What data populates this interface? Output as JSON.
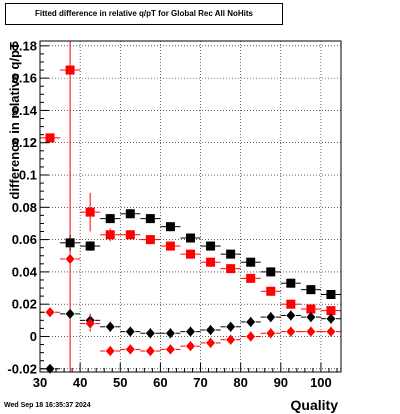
{
  "timestamp": "Wed Sep 18 16:35:37 2024",
  "colors": {
    "black": "#000000",
    "red": "#ff0000",
    "grid": "#000000"
  },
  "chart_data": {
    "type": "scatter",
    "title": "Fitted difference in relative q/pT for Global Rec All NoHits",
    "xlabel": "Quality",
    "ylabel": "difference in relative q/pT",
    "xlim": [
      30,
      105
    ],
    "ylim": [
      -0.022,
      0.183
    ],
    "grid": true,
    "x_ticks": [
      30,
      40,
      50,
      60,
      70,
      80,
      90,
      100
    ],
    "y_ticks": [
      -0.02,
      0,
      0.02,
      0.04,
      0.06,
      0.08,
      0.1,
      0.12,
      0.14,
      0.16,
      0.18
    ],
    "x_tick_labels": [
      "30",
      "40",
      "50",
      "60",
      "70",
      "80",
      "90",
      "100"
    ],
    "y_tick_labels": [
      "-0.02",
      "0",
      "0.02",
      "0.04",
      "0.06",
      "0.08",
      "0.1",
      "0.12",
      "0.14",
      "0.16",
      "0.18"
    ],
    "series": [
      {
        "marker": "square",
        "color": "#000000",
        "x": [
          37.5,
          42.5,
          47.5,
          52.5,
          57.5,
          62.5,
          67.5,
          72.5,
          77.5,
          82.5,
          87.5,
          92.5,
          97.5,
          102.5
        ],
        "y": [
          0.058,
          0.056,
          0.073,
          0.076,
          0.073,
          0.068,
          0.061,
          0.056,
          0.051,
          0.046,
          0.04,
          0.033,
          0.029,
          0.026
        ],
        "yerr": [
          0.005,
          0.003,
          0.002,
          0.002,
          0.002,
          0.002,
          0.002,
          0.002,
          0.002,
          0.002,
          0.002,
          0.002,
          0.002,
          0.002
        ]
      },
      {
        "marker": "square",
        "color": "#ff0000",
        "x": [
          32.5,
          37.5,
          42.5,
          47.5,
          52.5,
          57.5,
          62.5,
          67.5,
          72.5,
          77.5,
          82.5,
          87.5,
          92.5,
          97.5,
          102.5
        ],
        "y": [
          0.123,
          0.165,
          0.077,
          0.063,
          0.063,
          0.06,
          0.056,
          0.051,
          0.046,
          0.042,
          0.036,
          0.028,
          0.02,
          0.017,
          0.016
        ],
        "yerr": [
          0.0,
          0.0,
          0.012,
          0.004,
          0.002,
          0.002,
          0.002,
          0.002,
          0.002,
          0.002,
          0.002,
          0.002,
          0.002,
          0.002,
          0.002
        ]
      },
      {
        "marker": "diamond",
        "color": "#000000",
        "x": [
          32.5,
          37.5,
          42.5,
          47.5,
          52.5,
          57.5,
          62.5,
          67.5,
          72.5,
          77.5,
          82.5,
          87.5,
          92.5,
          97.5,
          102.5
        ],
        "y": [
          -0.02,
          0.014,
          0.01,
          0.006,
          0.003,
          0.002,
          0.002,
          0.003,
          0.004,
          0.006,
          0.009,
          0.012,
          0.013,
          0.012,
          0.011
        ],
        "yerr": [
          0.0,
          0.0,
          0.004,
          0.002,
          0.001,
          0.001,
          0.001,
          0.001,
          0.001,
          0.001,
          0.001,
          0.001,
          0.001,
          0.001,
          0.001
        ]
      },
      {
        "marker": "diamond",
        "color": "#ff0000",
        "x": [
          32.5,
          37.5,
          42.5,
          47.5,
          52.5,
          57.5,
          62.5,
          67.5,
          72.5,
          77.5,
          82.5,
          87.5,
          92.5,
          97.5,
          102.5
        ],
        "y": [
          0.015,
          0.048,
          0.008,
          -0.009,
          -0.008,
          -0.009,
          -0.008,
          -0.006,
          -0.004,
          -0.002,
          0.0,
          0.002,
          0.003,
          0.003,
          0.003
        ],
        "yerr": [
          0.0,
          0.0,
          0.005,
          0.002,
          0.001,
          0.001,
          0.001,
          0.001,
          0.001,
          0.001,
          0.001,
          0.001,
          0.001,
          0.001,
          0.001
        ]
      }
    ],
    "vertical_lines": [
      {
        "x": 37.5,
        "color": "#ff0000",
        "y_from": -0.022,
        "y_to": 0.183
      }
    ]
  }
}
